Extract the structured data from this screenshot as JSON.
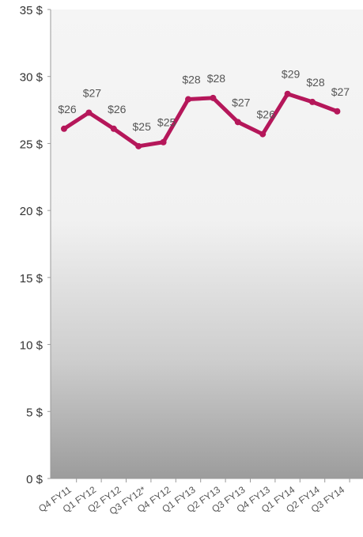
{
  "chart_data": {
    "type": "line",
    "title": "",
    "xlabel": "",
    "ylabel": "",
    "categories": [
      "Q4 FY11",
      "Q1 FY12",
      "Q2 FY12",
      "Q3 FY12*",
      "Q4 FY12",
      "Q1 FY13",
      "Q2 FY13",
      "Q3 FY13",
      "Q4 FY13",
      "Q1 FY14",
      "Q2 FY14",
      "Q3 FY14"
    ],
    "series": [
      {
        "values": [
          26.1,
          27.3,
          26.1,
          24.8,
          25.1,
          28.3,
          28.4,
          26.6,
          25.7,
          28.7,
          28.1,
          27.4
        ],
        "labels": [
          "$26",
          "$27",
          "$26",
          "$25",
          "$25",
          "$28",
          "$28",
          "$27",
          "$26",
          "$29",
          "$28",
          "$27"
        ],
        "color": "#b5175a"
      }
    ],
    "ylim": [
      0,
      35
    ],
    "yticks": [
      0,
      5,
      10,
      15,
      20,
      25,
      30,
      35
    ],
    "ytick_labels": [
      "0 $",
      "5 $",
      "10 $",
      "15 $",
      "20 $",
      "25 $",
      "30 $",
      "35 $"
    ],
    "grid": false,
    "legend": "none",
    "plot_background": "gradient-light-to-gray"
  }
}
